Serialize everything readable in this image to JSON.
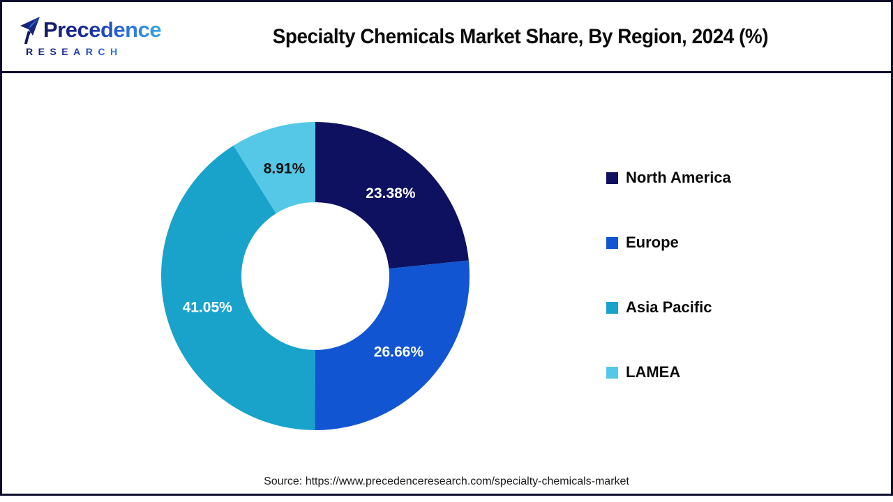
{
  "header": {
    "logo": {
      "line1": "Precedence",
      "line2": "RESEARCH",
      "accent_dark": "#131a5e",
      "accent_light": "#35a7e8"
    },
    "title": "Specialty Chemicals Market Share, By Region, 2024 (%)"
  },
  "chart_data": {
    "type": "pie",
    "donut": true,
    "title": "Specialty Chemicals Market Share, By Region, 2024 (%)",
    "categories": [
      "North America",
      "Europe",
      "Asia Pacific",
      "LAMEA"
    ],
    "values": [
      23.38,
      26.66,
      41.05,
      8.91
    ],
    "labels": [
      "23.38%",
      "26.66%",
      "41.05%",
      "8.91%"
    ],
    "colors": [
      "#0d115f",
      "#1155d2",
      "#19a3cb",
      "#54c8e6"
    ],
    "label_text_colors": [
      "#ffffff",
      "#ffffff",
      "#ffffff",
      "#111111"
    ],
    "start_angle_deg": 0,
    "direction": "clockwise",
    "inner_radius_ratio": 0.48,
    "legend_position": "right"
  },
  "legend": {
    "items": [
      {
        "label": "North America",
        "color": "#0d115f"
      },
      {
        "label": "Europe",
        "color": "#1155d2"
      },
      {
        "label": "Asia Pacific",
        "color": "#19a3cb"
      },
      {
        "label": "LAMEA",
        "color": "#54c8e6"
      }
    ]
  },
  "footer": {
    "source": "Source: https://www.precedenceresearch.com/specialty-chemicals-market"
  }
}
